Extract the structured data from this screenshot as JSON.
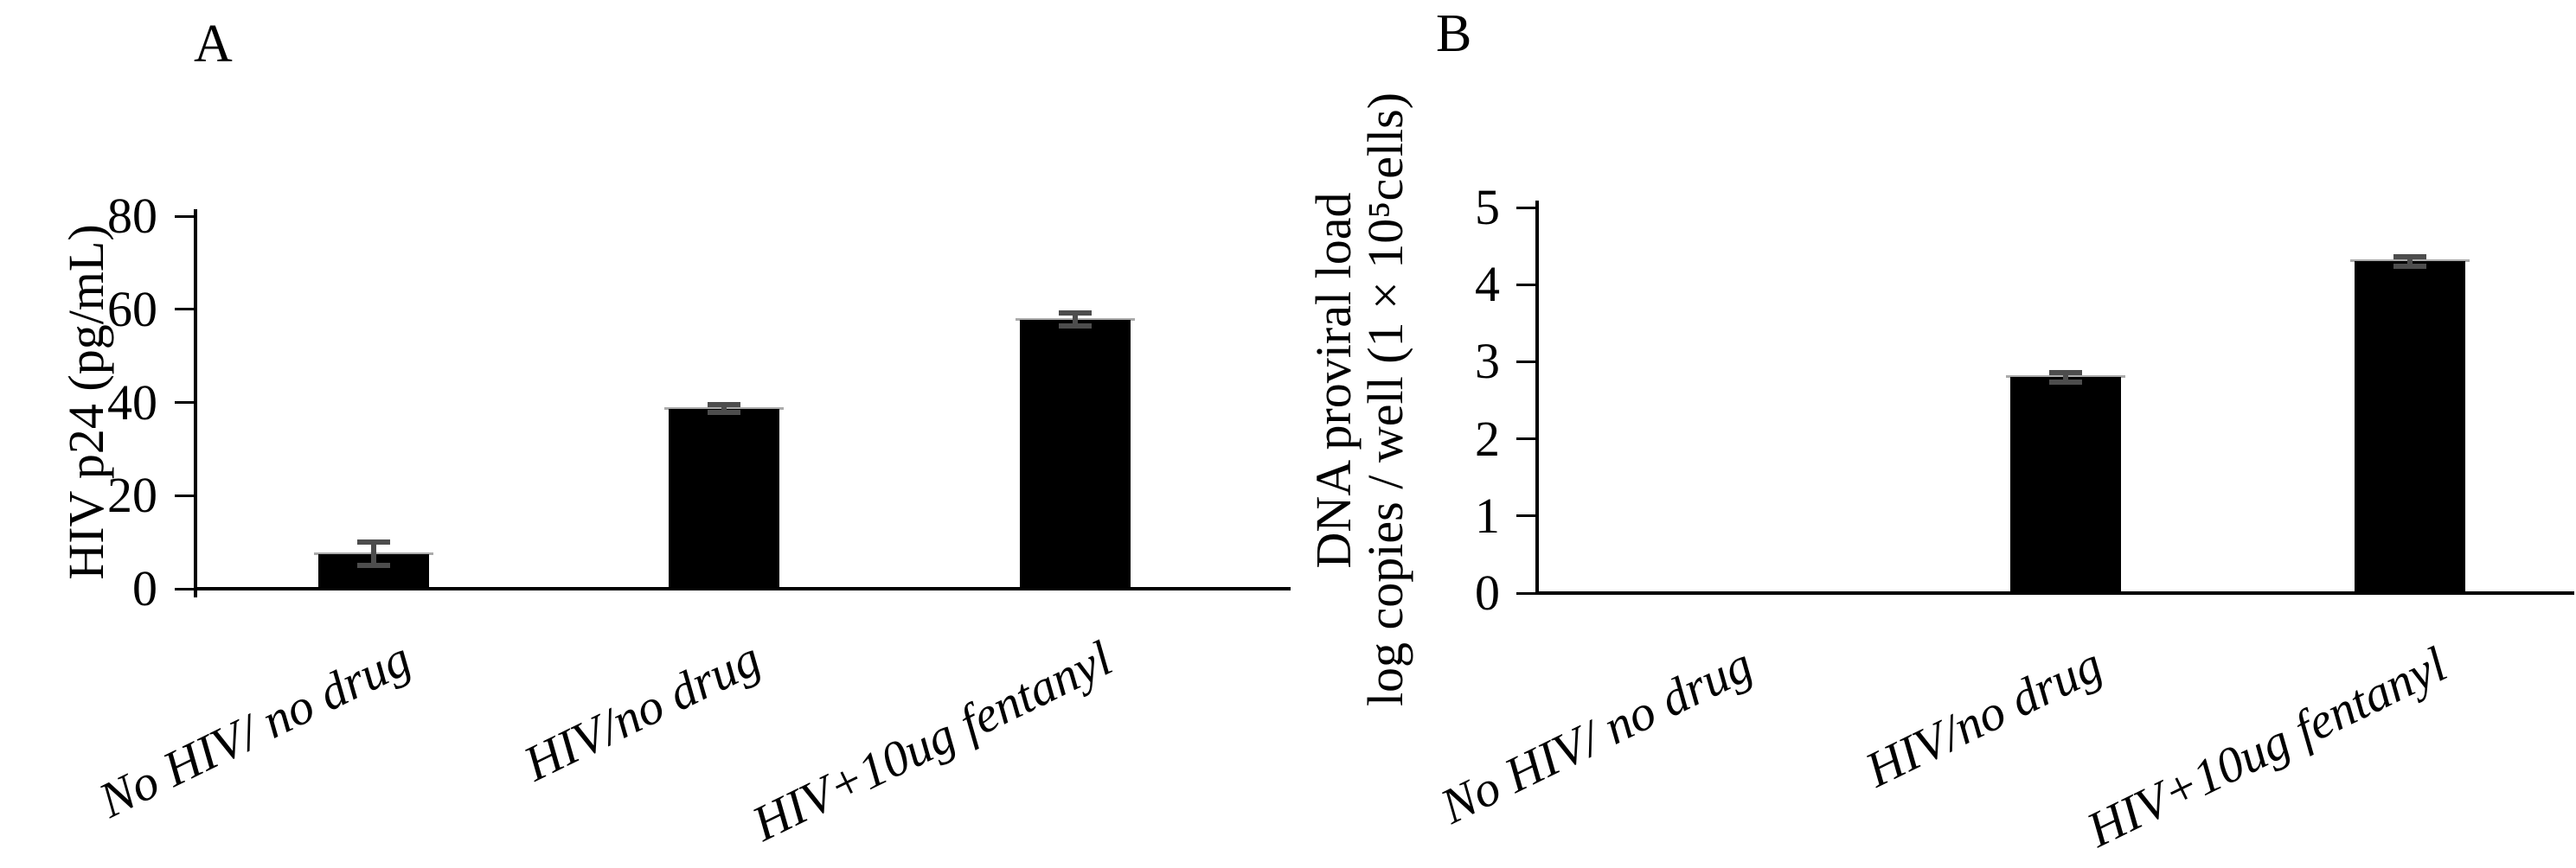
{
  "figure_title": "",
  "chart_data": [
    {
      "type": "bar",
      "panel_label": "A",
      "categories": [
        "No HIV/ no drug",
        "HIV/no drug",
        "HIV+10ug fentanyl"
      ],
      "values": [
        7.5,
        38.7,
        57.8
      ],
      "errors": [
        2.5,
        0.8,
        1.4
      ],
      "ylabel_lines": [
        "HIV p24 (pg/mL)"
      ],
      "yticks": [
        0,
        20,
        40,
        60,
        80
      ],
      "ylim": [
        0,
        80
      ],
      "xlabel": "",
      "legend_position": "none",
      "grid": false,
      "bar_color": "#000000",
      "error_color": "#4d4d4d"
    },
    {
      "type": "bar",
      "panel_label": "B",
      "categories": [
        "No HIV/ no drug",
        "HIV/no drug",
        "HIV+10ug fentanyl"
      ],
      "values": [
        0,
        2.8,
        4.3
      ],
      "errors": [
        0,
        0.06,
        0.06
      ],
      "ylabel_lines": [
        "DNA proviral load",
        "log copies / well (1 × 10⁵cells)"
      ],
      "yticks": [
        0,
        1,
        2,
        3,
        4,
        5
      ],
      "ylim": [
        0,
        5
      ],
      "xlabel": "",
      "legend_position": "none",
      "grid": false,
      "bar_color": "#000000",
      "error_color": "#4d4d4d"
    }
  ]
}
